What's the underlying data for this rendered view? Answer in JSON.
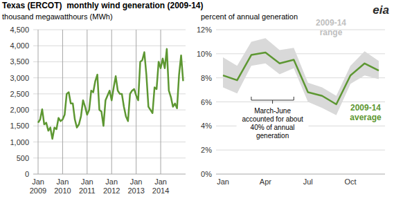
{
  "logo": "eia",
  "chart_data": [
    {
      "type": "line",
      "title": "Texas (ERCOT)  monthly wind generation (2009-14)",
      "y_label": "thousand megawatthours (MWh)",
      "categories": [
        "Jan 2009",
        null,
        null,
        null,
        null,
        null,
        null,
        null,
        null,
        null,
        null,
        null,
        "Jan 2010",
        null,
        null,
        null,
        null,
        null,
        null,
        null,
        null,
        null,
        null,
        null,
        "Jan 2011",
        null,
        null,
        null,
        null,
        null,
        null,
        null,
        null,
        null,
        null,
        null,
        "Jan 2012",
        null,
        null,
        null,
        null,
        null,
        null,
        null,
        null,
        null,
        null,
        null,
        "Jan 2013",
        null,
        null,
        null,
        null,
        null,
        null,
        null,
        null,
        null,
        null,
        null,
        "Jan 2014",
        null,
        null,
        null,
        null,
        null,
        null,
        null,
        null,
        null,
        null,
        null
      ],
      "values": [
        1600,
        1700,
        2020,
        1550,
        1600,
        1350,
        1450,
        1100,
        1450,
        1400,
        1750,
        1650,
        1700,
        1850,
        2500,
        2550,
        2200,
        2200,
        1700,
        1450,
        1550,
        1800,
        2300,
        2100,
        1850,
        2000,
        2600,
        2550,
        2900,
        3100,
        2000,
        1950,
        1500,
        2300,
        2450,
        2600,
        2300,
        2700,
        3050,
        2600,
        2500,
        2500,
        2100,
        1800,
        1650,
        2500,
        2600,
        2650,
        2450,
        2300,
        3500,
        3550,
        3800,
        3100,
        2100,
        2000,
        1900,
        2700,
        2650,
        3500,
        3300,
        3600,
        3300,
        3900,
        2600,
        2400,
        2100,
        2200,
        2050,
        3100,
        3700,
        2900
      ],
      "color": "#5d9732",
      "ylim": [
        0,
        4500
      ],
      "yticks": [
        0,
        500,
        {
          "value": 1000,
          "label": "1,000"
        },
        {
          "value": 1500,
          "label": "1,500"
        },
        {
          "value": 2000,
          "label": "2,000"
        },
        {
          "value": 2500,
          "label": "2,500"
        },
        {
          "value": 3000,
          "label": "3,000"
        },
        {
          "value": 3500,
          "label": "3,500"
        },
        {
          "value": 4000,
          "label": "4,000"
        },
        {
          "value": 4500,
          "label": "4,500"
        }
      ],
      "grid": true
    },
    {
      "type": "line",
      "y_label": "percent of annual generation",
      "categories": [
        "Jan",
        null,
        null,
        "Apr",
        null,
        null,
        "Jul",
        null,
        null,
        "Oct",
        null,
        null
      ],
      "series": [
        {
          "name": "2009-14 range",
          "type": "range",
          "color": "#d9d9d9",
          "low": [
            7.2,
            6.7,
            9.0,
            9.2,
            8.3,
            8.8,
            6.0,
            5.5,
            4.9,
            7.5,
            8.2,
            7.9
          ],
          "high": [
            9.7,
            9.0,
            11.0,
            11.3,
            10.3,
            10.5,
            7.6,
            7.2,
            6.5,
            9.0,
            10.2,
            9.4
          ]
        },
        {
          "name": "2009-14 average",
          "type": "line",
          "color": "#5d9732",
          "values": [
            8.2,
            7.8,
            9.9,
            10.1,
            9.2,
            9.5,
            6.8,
            6.5,
            5.8,
            8.2,
            9.2,
            8.6
          ]
        }
      ],
      "annotation": "March-June accounted for about 40% of annual generation",
      "ylim": [
        0,
        12
      ],
      "yticks": [
        {
          "value": 0,
          "label": "0%"
        },
        {
          "value": 2,
          "label": "2%"
        },
        {
          "value": 4,
          "label": "4%"
        },
        {
          "value": 6,
          "label": "6%"
        },
        {
          "value": 8,
          "label": "8%"
        },
        {
          "value": 10,
          "label": "10%"
        },
        {
          "value": 12,
          "label": "12%"
        }
      ],
      "grid": "y"
    }
  ]
}
